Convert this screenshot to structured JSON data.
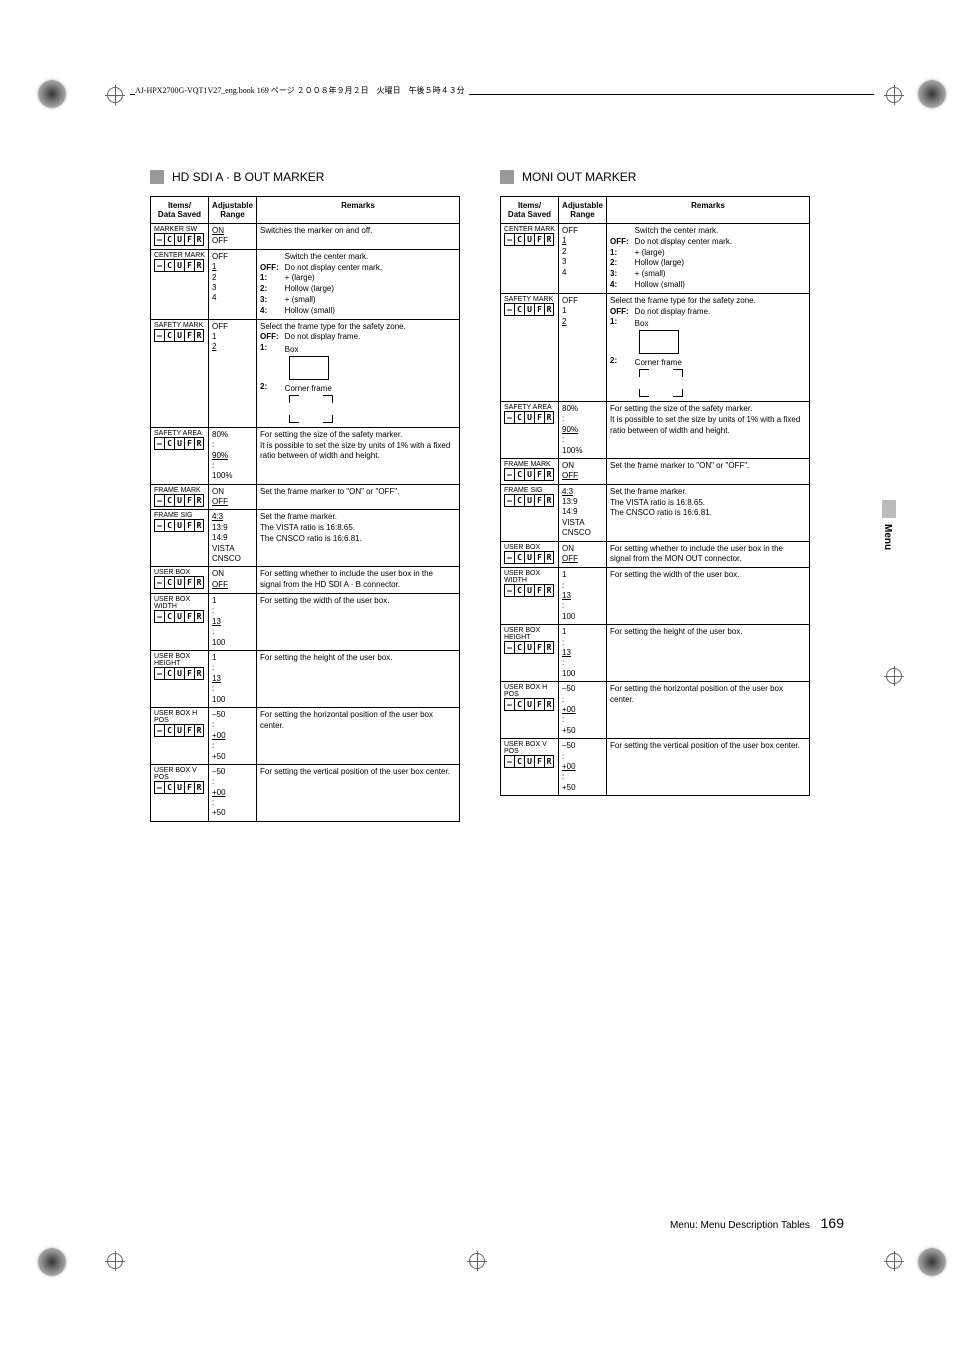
{
  "header_text": "AJ-HPX2700G-VQT1V27_eng.book  169 ページ  ２００８年９月２日　火曜日　午後５時４３分",
  "side_label": "Menu",
  "footer_label": "Menu: Menu Description Tables",
  "page_number": "169",
  "table_headers": {
    "items": "Items/\nData Saved",
    "range": "Adjustable\nRange",
    "remarks": "Remarks"
  },
  "left_section_title": "HD SDI A · B OUT MARKER",
  "right_section_title": "MONI OUT MARKER",
  "cufr": [
    "–",
    "C",
    "U",
    "F",
    "R"
  ],
  "left_rows": [
    {
      "item": "MARKER SW",
      "range": [
        {
          "t": "ON",
          "d": true
        },
        {
          "t": "OFF"
        }
      ],
      "remarks": "Switches the marker on and off."
    },
    {
      "item": "CENTER MARK",
      "range": [
        {
          "t": "OFF"
        },
        {
          "t": "1",
          "d": true
        },
        {
          "t": "2"
        },
        {
          "t": "3"
        },
        {
          "t": "4"
        }
      ],
      "remarks_pairs": [
        [
          "",
          "Switch the center mark."
        ],
        [
          "OFF:",
          "Do not display center mark."
        ],
        [
          "1:",
          "+ (large)"
        ],
        [
          "2:",
          "Hollow (large)"
        ],
        [
          "3:",
          "+ (small)"
        ],
        [
          "4:",
          "Hollow (small)"
        ]
      ]
    },
    {
      "item": "SAFETY MARK",
      "range": [
        {
          "t": "OFF"
        },
        {
          "t": "1"
        },
        {
          "t": "2",
          "d": true
        }
      ],
      "remarks_safety": true,
      "safety_intro": "Select the frame type for the safety zone.",
      "safety_off": "Do not display frame.",
      "safety_box": "Box",
      "safety_corner": "Corner frame"
    },
    {
      "item": "SAFETY AREA",
      "range": [
        {
          "t": "80%"
        },
        {
          "t": ":"
        },
        {
          "t": "90%",
          "d": true
        },
        {
          "t": ":"
        },
        {
          "t": "100%"
        }
      ],
      "remarks": "For setting the size of the safety marker.\nIt is possible to set the size by units of 1% with a fixed ratio between of width and height."
    },
    {
      "item": "FRAME MARK",
      "range": [
        {
          "t": "ON"
        },
        {
          "t": "OFF",
          "d": true
        }
      ],
      "remarks": "Set the frame marker to \"ON\" or \"OFF\"."
    },
    {
      "item": "FRAME SIG",
      "range": [
        {
          "t": "4:3",
          "d": true
        },
        {
          "t": "13:9"
        },
        {
          "t": "14:9"
        },
        {
          "t": "VISTA"
        },
        {
          "t": "CNSCO"
        }
      ],
      "remarks": "Set the frame marker.\nThe VISTA ratio is 16:8.65.\nThe CNSCO ratio is 16:6.81."
    },
    {
      "item": "USER BOX",
      "range": [
        {
          "t": "ON"
        },
        {
          "t": "OFF",
          "d": true
        }
      ],
      "remarks": "For setting whether to include the user box in the signal from the HD SDI A · B connector."
    },
    {
      "item": "USER BOX WIDTH",
      "range": [
        {
          "t": "1"
        },
        {
          "t": ":"
        },
        {
          "t": "13",
          "d": true
        },
        {
          "t": ":"
        },
        {
          "t": "100"
        }
      ],
      "remarks": "For setting the width of the user box."
    },
    {
      "item": "USER BOX HEIGHT",
      "range": [
        {
          "t": "1"
        },
        {
          "t": ":"
        },
        {
          "t": "13",
          "d": true
        },
        {
          "t": ":"
        },
        {
          "t": "100"
        }
      ],
      "remarks": "For setting the height of the user box."
    },
    {
      "item": "USER BOX H POS",
      "range": [
        {
          "t": "–50"
        },
        {
          "t": ":"
        },
        {
          "t": "+00",
          "d": true
        },
        {
          "t": ":"
        },
        {
          "t": "+50"
        }
      ],
      "remarks": "For setting the horizontal position of the user box center."
    },
    {
      "item": "USER BOX V POS",
      "range": [
        {
          "t": "–50"
        },
        {
          "t": ":"
        },
        {
          "t": "+00",
          "d": true
        },
        {
          "t": ":"
        },
        {
          "t": "+50"
        }
      ],
      "remarks": "For setting the vertical position of the user box center."
    }
  ],
  "right_rows": [
    {
      "item": "CENTER MARK",
      "range": [
        {
          "t": "OFF"
        },
        {
          "t": "1",
          "d": true
        },
        {
          "t": "2"
        },
        {
          "t": "3"
        },
        {
          "t": "4"
        }
      ],
      "remarks_pairs": [
        [
          "",
          "Switch the center mark."
        ],
        [
          "OFF:",
          "Do not display center mark."
        ],
        [
          "1:",
          "+ (large)"
        ],
        [
          "2:",
          "Hollow (large)"
        ],
        [
          "3:",
          "+ (small)"
        ],
        [
          "4:",
          "Hollow (small)"
        ]
      ]
    },
    {
      "item": "SAFETY MARK",
      "range": [
        {
          "t": "OFF"
        },
        {
          "t": "1"
        },
        {
          "t": "2",
          "d": true
        }
      ],
      "remarks_safety": true,
      "safety_intro": "Select the frame type for the safety zone.",
      "safety_off": "Do not display frame.",
      "safety_box": "Box",
      "safety_corner": "Corner frame"
    },
    {
      "item": "SAFETY AREA",
      "range": [
        {
          "t": "80%"
        },
        {
          "t": ":"
        },
        {
          "t": "90%",
          "d": true
        },
        {
          "t": ":"
        },
        {
          "t": "100%"
        }
      ],
      "remarks": "For setting the size of the safety marker.\nIt is possible to set the size by units of 1% with a fixed ratio between of width and height."
    },
    {
      "item": "FRAME MARK",
      "range": [
        {
          "t": "ON"
        },
        {
          "t": "OFF",
          "d": true
        }
      ],
      "remarks": "Set the frame marker to \"ON\" or \"OFF\"."
    },
    {
      "item": "FRAME SIG",
      "range": [
        {
          "t": "4:3",
          "d": true
        },
        {
          "t": "13:9"
        },
        {
          "t": "14:9"
        },
        {
          "t": "VISTA"
        },
        {
          "t": "CNSCO"
        }
      ],
      "remarks": "Set the frame marker.\nThe VISTA ratio is 16:8.65.\nThe CNSCO ratio is 16:6.81."
    },
    {
      "item": "USER BOX",
      "range": [
        {
          "t": "ON"
        },
        {
          "t": "OFF",
          "d": true
        }
      ],
      "remarks": "For setting whether to include the user box in the signal from the MON OUT connector."
    },
    {
      "item": "USER BOX WIDTH",
      "range": [
        {
          "t": "1"
        },
        {
          "t": ":"
        },
        {
          "t": "13",
          "d": true
        },
        {
          "t": ":"
        },
        {
          "t": "100"
        }
      ],
      "remarks": "For setting the width of the user box."
    },
    {
      "item": "USER BOX HEIGHT",
      "range": [
        {
          "t": "1"
        },
        {
          "t": ":"
        },
        {
          "t": "13",
          "d": true
        },
        {
          "t": ":"
        },
        {
          "t": "100"
        }
      ],
      "remarks": "For setting the height of the user box."
    },
    {
      "item": "USER BOX H POS",
      "range": [
        {
          "t": "–50"
        },
        {
          "t": ":"
        },
        {
          "t": "+00",
          "d": true
        },
        {
          "t": ":"
        },
        {
          "t": "+50"
        }
      ],
      "remarks": "For setting the horizontal position of the user box center."
    },
    {
      "item": "USER BOX V POS",
      "range": [
        {
          "t": "–50"
        },
        {
          "t": ":"
        },
        {
          "t": "+00",
          "d": true
        },
        {
          "t": ":"
        },
        {
          "t": "+50"
        }
      ],
      "remarks": "For setting the vertical position of the user box center."
    }
  ]
}
